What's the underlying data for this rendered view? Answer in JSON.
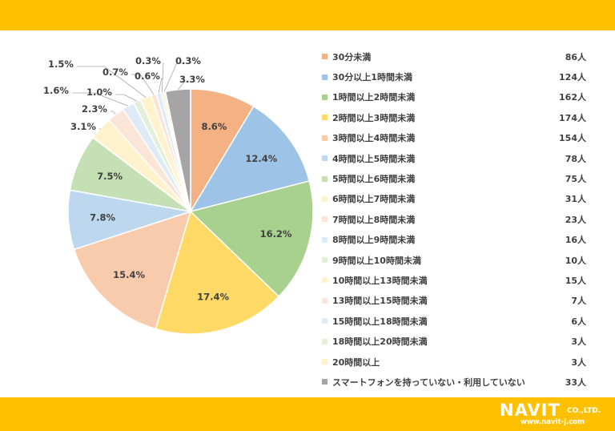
{
  "chart_data": {
    "type": "pie",
    "slices": [
      {
        "label": "30分未満",
        "count": "86人",
        "value": 8.6,
        "pct": "8.6%",
        "color": "#f4b183"
      },
      {
        "label": "30分以上1時間未満",
        "count": "124人",
        "value": 12.4,
        "pct": "12.4%",
        "color": "#9dc3e6"
      },
      {
        "label": "1時間以上2時間未満",
        "count": "162人",
        "value": 16.2,
        "pct": "16.2%",
        "color": "#a9d18e"
      },
      {
        "label": "2時間以上3時間未満",
        "count": "174人",
        "value": 17.4,
        "pct": "17.4%",
        "color": "#ffd966"
      },
      {
        "label": "3時間以上4時間未満",
        "count": "154人",
        "value": 15.4,
        "pct": "15.4%",
        "color": "#f8cbad"
      },
      {
        "label": "4時間以上5時間未満",
        "count": "78人",
        "value": 7.8,
        "pct": "7.8%",
        "color": "#bdd7ee"
      },
      {
        "label": "5時間以上6時間未満",
        "count": "75人",
        "value": 7.5,
        "pct": "7.5%",
        "color": "#c5e0b4"
      },
      {
        "label": "6時間以上7時間未満",
        "count": "31人",
        "value": 3.1,
        "pct": "3.1%",
        "color": "#fff2cc"
      },
      {
        "label": "7時間以上8時間未満",
        "count": "23人",
        "value": 2.3,
        "pct": "2.3%",
        "color": "#fbe5d6"
      },
      {
        "label": "8時間以上9時間未満",
        "count": "16人",
        "value": 1.6,
        "pct": "1.6%",
        "color": "#deebf7"
      },
      {
        "label": "9時間以上10時間未満",
        "count": "10人",
        "value": 1.0,
        "pct": "1.0%",
        "color": "#e2f0d9"
      },
      {
        "label": "10時間以上13時間未満",
        "count": "15人",
        "value": 1.5,
        "pct": "1.5%",
        "color": "#fff2cc"
      },
      {
        "label": "13時間以上15時間未満",
        "count": "7人",
        "value": 0.7,
        "pct": "0.7%",
        "color": "#fbe5d6"
      },
      {
        "label": "15時間以上18時間未満",
        "count": "6人",
        "value": 0.6,
        "pct": "0.6%",
        "color": "#ddebf7"
      },
      {
        "label": "18時間以上20時間未満",
        "count": "3人",
        "value": 0.3,
        "pct": "0.3%",
        "color": "#e2f0d9"
      },
      {
        "label": "20時間以上",
        "count": "3人",
        "value": 0.3,
        "pct": "0.3%",
        "color": "#fff2cc"
      },
      {
        "label": "スマートフォンを持っていない・利用していない",
        "count": "33人",
        "value": 3.3,
        "pct": "3.3%",
        "color": "#a5a5a5"
      }
    ]
  },
  "logo": {
    "main": "NAVIT",
    "suffix": "CO.,LTD.",
    "url": "www.navit-j.com"
  }
}
